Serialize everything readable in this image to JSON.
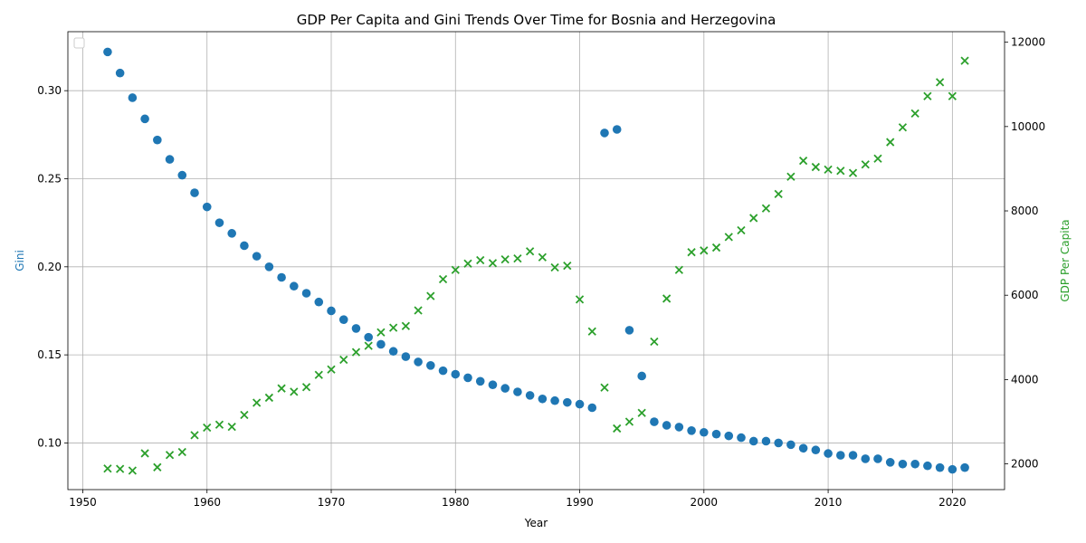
{
  "chart_data": {
    "type": "scatter",
    "title": "GDP Per Capita and Gini Trends Over Time for Bosnia and Herzegovina",
    "xlabel": "Year",
    "ylabel_left": "Gini",
    "ylabel_right": "GDP Per Capita",
    "xlim": [
      1948.8,
      2024.2
    ],
    "ylim_left": [
      0.0735,
      0.3335
    ],
    "ylim_right": [
      1390,
      12250
    ],
    "x_ticks": [
      1950,
      1960,
      1970,
      1980,
      1990,
      2000,
      2010,
      2020
    ],
    "y_ticks_left": [
      0.1,
      0.15,
      0.2,
      0.25,
      0.3
    ],
    "y_ticks_right": [
      2000,
      4000,
      6000,
      8000,
      10000,
      12000
    ],
    "grid": true,
    "legend": "top-left (empty)",
    "colors": {
      "gini": "#1f77b4",
      "gdp": "#2ca02c",
      "axis_left_label": "#1f77b4",
      "axis_right_label": "#2ca02c"
    },
    "series": [
      {
        "marker": "circle",
        "axis": "left",
        "x": [
          1952,
          1953,
          1954,
          1955,
          1956,
          1957,
          1958,
          1959,
          1960,
          1961,
          1962,
          1963,
          1964,
          1965,
          1966,
          1967,
          1968,
          1969,
          1970,
          1971,
          1972,
          1973,
          1974,
          1975,
          1976,
          1977,
          1978,
          1979,
          1980,
          1981,
          1982,
          1983,
          1984,
          1985,
          1986,
          1987,
          1988,
          1989,
          1990,
          1991,
          1992,
          1993,
          1994,
          1995,
          1996,
          1997,
          1998,
          1999,
          2000,
          2001,
          2002,
          2003,
          2004,
          2005,
          2006,
          2007,
          2008,
          2009,
          2010,
          2011,
          2012,
          2013,
          2014,
          2015,
          2016,
          2017,
          2018,
          2019,
          2020,
          2021
        ],
        "y": [
          0.322,
          0.31,
          0.296,
          0.284,
          0.272,
          0.261,
          0.252,
          0.242,
          0.234,
          0.225,
          0.219,
          0.212,
          0.206,
          0.2,
          0.194,
          0.189,
          0.185,
          0.18,
          0.175,
          0.17,
          0.165,
          0.16,
          0.156,
          0.152,
          0.149,
          0.146,
          0.144,
          0.141,
          0.139,
          0.137,
          0.135,
          0.133,
          0.131,
          0.129,
          0.127,
          0.125,
          0.124,
          0.123,
          0.122,
          0.12,
          0.276,
          0.278,
          0.164,
          0.138,
          0.112,
          0.11,
          0.109,
          0.107,
          0.106,
          0.105,
          0.104,
          0.103,
          0.101,
          0.101,
          0.1,
          0.099,
          0.097,
          0.096,
          0.094,
          0.093,
          0.093,
          0.091,
          0.091,
          0.089,
          0.088,
          0.088,
          0.087,
          0.086,
          0.085,
          0.086
        ]
      },
      {
        "marker": "x",
        "axis": "right",
        "x": [
          1952,
          1953,
          1954,
          1955,
          1956,
          1957,
          1958,
          1959,
          1960,
          1961,
          1962,
          1963,
          1964,
          1965,
          1966,
          1967,
          1968,
          1969,
          1970,
          1971,
          1972,
          1973,
          1974,
          1975,
          1976,
          1977,
          1978,
          1979,
          1980,
          1981,
          1982,
          1983,
          1984,
          1985,
          1986,
          1987,
          1988,
          1989,
          1990,
          1991,
          1992,
          1993,
          1994,
          1995,
          1996,
          1997,
          1998,
          1999,
          2000,
          2001,
          2002,
          2003,
          2004,
          2005,
          2006,
          2007,
          2008,
          2009,
          2010,
          2011,
          2012,
          2013,
          2014,
          2015,
          2016,
          2017,
          2018,
          2019,
          2020,
          2021
        ],
        "y": [
          1890,
          1880,
          1840,
          2250,
          1920,
          2210,
          2280,
          2680,
          2860,
          2930,
          2880,
          3160,
          3450,
          3570,
          3790,
          3710,
          3820,
          4110,
          4240,
          4470,
          4650,
          4800,
          5120,
          5230,
          5270,
          5640,
          5980,
          6380,
          6600,
          6750,
          6830,
          6760,
          6850,
          6870,
          7040,
          6900,
          6660,
          6700,
          5900,
          5140,
          3810,
          2840,
          3000,
          3210,
          4900,
          5920,
          6600,
          7020,
          7060,
          7130,
          7380,
          7540,
          7830,
          8060,
          8400,
          8810,
          9190,
          9040,
          8980,
          8950,
          8900,
          9100,
          9240,
          9630,
          9980,
          10310,
          10720,
          11050,
          10720,
          11560
        ]
      }
    ]
  }
}
